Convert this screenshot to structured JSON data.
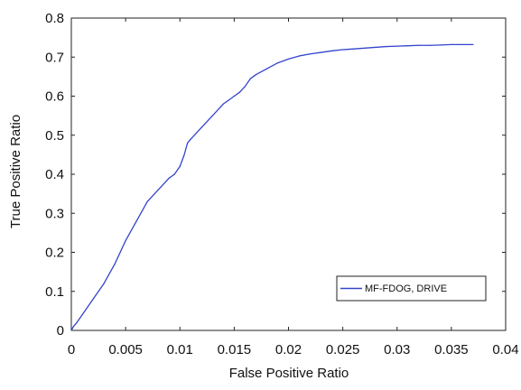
{
  "chart_data": {
    "type": "line",
    "title": "",
    "xlabel": "False Positive Ratio",
    "ylabel": "True Positive Ratio",
    "xlim": [
      0,
      0.04
    ],
    "ylim": [
      0,
      0.8
    ],
    "xticks": [
      0,
      0.005,
      0.01,
      0.015,
      0.02,
      0.025,
      0.03,
      0.035,
      0.04
    ],
    "xtick_labels": [
      "0",
      "0.005",
      "0.01",
      "0.015",
      "0.02",
      "0.025",
      "0.03",
      "0.035",
      "0.04"
    ],
    "yticks": [
      0,
      0.1,
      0.2,
      0.3,
      0.4,
      0.5,
      0.6,
      0.7,
      0.8
    ],
    "ytick_labels": [
      "0",
      "0.1",
      "0.2",
      "0.3",
      "0.4",
      "0.5",
      "0.6",
      "0.7",
      "0.8"
    ],
    "grid": false,
    "legend_position": "bottom-right",
    "series": [
      {
        "name": "MF-FDOG, DRIVE",
        "color": "#3344cc",
        "x": [
          0,
          0.0002,
          0.0005,
          0.001,
          0.002,
          0.003,
          0.004,
          0.005,
          0.006,
          0.007,
          0.008,
          0.009,
          0.0095,
          0.01,
          0.0104,
          0.0107,
          0.011,
          0.012,
          0.013,
          0.014,
          0.015,
          0.0155,
          0.016,
          0.0165,
          0.017,
          0.018,
          0.019,
          0.02,
          0.021,
          0.022,
          0.023,
          0.024,
          0.025,
          0.026,
          0.027,
          0.028,
          0.029,
          0.03,
          0.031,
          0.032,
          0.033,
          0.034,
          0.035,
          0.036,
          0.037
        ],
        "y": [
          0.0,
          0.01,
          0.02,
          0.04,
          0.08,
          0.12,
          0.17,
          0.23,
          0.28,
          0.33,
          0.36,
          0.39,
          0.4,
          0.42,
          0.45,
          0.48,
          0.49,
          0.52,
          0.55,
          0.58,
          0.6,
          0.61,
          0.625,
          0.645,
          0.655,
          0.67,
          0.685,
          0.695,
          0.703,
          0.708,
          0.712,
          0.716,
          0.719,
          0.721,
          0.723,
          0.725,
          0.727,
          0.728,
          0.729,
          0.73,
          0.73,
          0.731,
          0.732,
          0.732,
          0.732
        ]
      }
    ]
  }
}
